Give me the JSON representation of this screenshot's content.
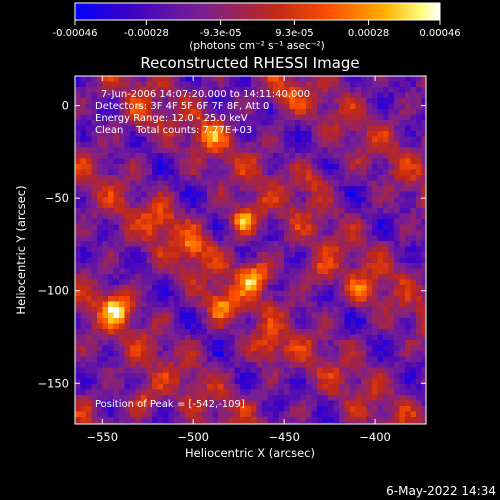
{
  "chart_data": {
    "type": "heatmap",
    "title": "Reconstructed RHESSI Image",
    "xlabel": "Heliocentric X (arcsec)",
    "ylabel": "Heliocentric Y (arcsec)",
    "xlim": [
      -565,
      -372
    ],
    "ylim": [
      -172,
      16
    ],
    "xticks": [
      -550,
      -500,
      -450,
      -400
    ],
    "yticks": [
      0,
      -50,
      -100,
      -150
    ],
    "grid": false,
    "colorbar": {
      "ticks": [
        "-0.00046",
        "-0.00028",
        "-9.3e-05",
        "9.3e-05",
        "0.00028",
        "0.00046"
      ],
      "tick_values": [
        -0.00046,
        -0.00028,
        -9.3e-05,
        9.3e-05,
        0.00028,
        0.00046
      ],
      "range": [
        -0.00046,
        0.00046
      ],
      "unit_label": "(photons cm⁻² s⁻¹ asec⁻²)",
      "colors": [
        "#0000ff",
        "#3a00c8",
        "#7a2090",
        "#c02818",
        "#ff5000",
        "#ffb000",
        "#ffff80",
        "#ffffff"
      ]
    },
    "annotations": [
      "7-Jun-2006 14:07:20.000 to 14:11:40.000",
      "Detectors: 3F 4F 5F 6F 7F 8F, Att 0",
      "Energy Range: 12.0 - 25.0 keV",
      "Clean    Total counts: 7.77E+03"
    ],
    "peak_text": "Position of Peak = [-542,-109]",
    "sources": [
      {
        "x": -542,
        "y": -109,
        "flux": 0.00046
      },
      {
        "x": -466,
        "y": -92,
        "flux": 0.00044
      },
      {
        "x": -472,
        "y": -62,
        "flux": 0.00043
      },
      {
        "x": -485,
        "y": -108,
        "flux": 0.00032
      },
      {
        "x": -517,
        "y": -62,
        "flux": 0.00026
      },
      {
        "x": -500,
        "y": -76,
        "flux": 0.00028
      },
      {
        "x": -527,
        "y": -158,
        "flux": 0.00025
      },
      {
        "x": -459,
        "y": -132,
        "flux": 0.0003
      },
      {
        "x": -430,
        "y": -91,
        "flux": 0.00025
      },
      {
        "x": -408,
        "y": -100,
        "flux": 0.00024
      },
      {
        "x": -433,
        "y": -40,
        "flux": 0.00022
      },
      {
        "x": -490,
        "y": -15,
        "flux": 0.00025
      },
      {
        "x": -530,
        "y": -8,
        "flux": 0.00022
      },
      {
        "x": -450,
        "y": 5,
        "flux": 0.0002
      }
    ]
  },
  "footer": {
    "date": "6-May-2022 14:34"
  }
}
